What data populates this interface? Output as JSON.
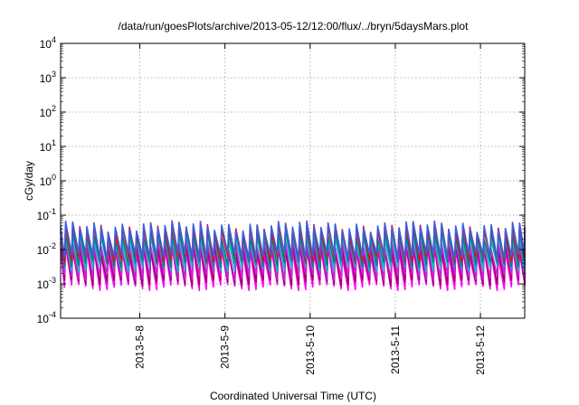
{
  "chart_data": {
    "type": "line",
    "title": "/data/run/goesPlots/archive/2013-05-12/12:00/flux/../bryn/5daysMars.plot",
    "xlabel": "Coordinated Universal Time (UTC)",
    "ylabel": "cGy/day",
    "yscale": "log",
    "ylim_exponents": [
      -4,
      4
    ],
    "yticks": [
      {
        "base": "10",
        "exp": "-4"
      },
      {
        "base": "10",
        "exp": "-3"
      },
      {
        "base": "10",
        "exp": "-2"
      },
      {
        "base": "10",
        "exp": "-1"
      },
      {
        "base": "10",
        "exp": "0"
      },
      {
        "base": "10",
        "exp": "1"
      },
      {
        "base": "10",
        "exp": "2"
      },
      {
        "base": "10",
        "exp": "3"
      },
      {
        "base": "10",
        "exp": "4"
      }
    ],
    "xrange_days": [
      7.07,
      12.52
    ],
    "xticks": [
      {
        "label": "2013-5-8",
        "day": 8
      },
      {
        "label": "2013-5-9",
        "day": 9
      },
      {
        "label": "2013-5-10",
        "day": 10
      },
      {
        "label": "2013-5-11",
        "day": 11
      },
      {
        "label": "2013-5-12",
        "day": 12
      }
    ],
    "grid": true,
    "legend": "none",
    "sawtooth_period_days": 0.0833,
    "series": [
      {
        "color": "#ff00ff",
        "peak": 0.009,
        "trough": 0.0008
      },
      {
        "color": "#a0005a",
        "peak": 0.012,
        "trough": 0.0011
      },
      {
        "color": "#cc22dd",
        "peak": 0.016,
        "trough": 0.0016
      },
      {
        "color": "#00c0c0",
        "peak": 0.025,
        "trough": 0.0028
      },
      {
        "color": "#008080",
        "peak": 0.032,
        "trough": 0.0038
      },
      {
        "color": "#ff0000",
        "peak": 0.045,
        "trough": 0.0055
      },
      {
        "color": "#3a5fe0",
        "peak": 0.05,
        "trough": 0.0065
      }
    ]
  }
}
